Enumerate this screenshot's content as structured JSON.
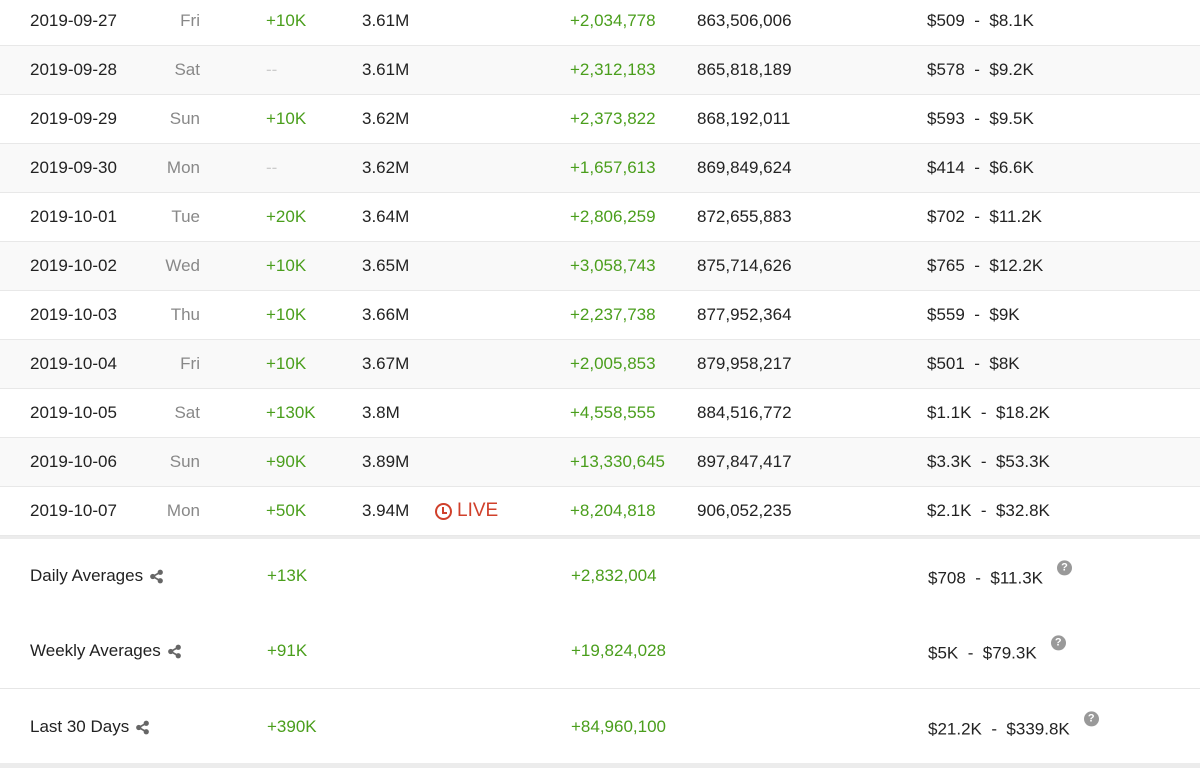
{
  "rows": [
    {
      "date": "2019-09-27",
      "day": "Fri",
      "subs": "+10K",
      "total": "3.61M",
      "views": "+2,034,778",
      "total_views": "863,506,006",
      "earnings": "$509  -  $8.1K"
    },
    {
      "date": "2019-09-28",
      "day": "Sat",
      "subs": "--",
      "total": "3.61M",
      "views": "+2,312,183",
      "total_views": "865,818,189",
      "earnings": "$578  -  $9.2K"
    },
    {
      "date": "2019-09-29",
      "day": "Sun",
      "subs": "+10K",
      "total": "3.62M",
      "views": "+2,373,822",
      "total_views": "868,192,011",
      "earnings": "$593  -  $9.5K"
    },
    {
      "date": "2019-09-30",
      "day": "Mon",
      "subs": "--",
      "total": "3.62M",
      "views": "+1,657,613",
      "total_views": "869,849,624",
      "earnings": "$414  -  $6.6K"
    },
    {
      "date": "2019-10-01",
      "day": "Tue",
      "subs": "+20K",
      "total": "3.64M",
      "views": "+2,806,259",
      "total_views": "872,655,883",
      "earnings": "$702  -  $11.2K"
    },
    {
      "date": "2019-10-02",
      "day": "Wed",
      "subs": "+10K",
      "total": "3.65M",
      "views": "+3,058,743",
      "total_views": "875,714,626",
      "earnings": "$765  -  $12.2K"
    },
    {
      "date": "2019-10-03",
      "day": "Thu",
      "subs": "+10K",
      "total": "3.66M",
      "views": "+2,237,738",
      "total_views": "877,952,364",
      "earnings": "$559  -  $9K"
    },
    {
      "date": "2019-10-04",
      "day": "Fri",
      "subs": "+10K",
      "total": "3.67M",
      "views": "+2,005,853",
      "total_views": "879,958,217",
      "earnings": "$501  -  $8K"
    },
    {
      "date": "2019-10-05",
      "day": "Sat",
      "subs": "+130K",
      "total": "3.8M",
      "views": "+4,558,555",
      "total_views": "884,516,772",
      "earnings": "$1.1K  -  $18.2K"
    },
    {
      "date": "2019-10-06",
      "day": "Sun",
      "subs": "+90K",
      "total": "3.89M",
      "views": "+13,330,645",
      "total_views": "897,847,417",
      "earnings": "$3.3K  -  $53.3K"
    },
    {
      "date": "2019-10-07",
      "day": "Mon",
      "subs": "+50K",
      "total": "3.94M",
      "live": "LIVE",
      "views": "+8,204,818",
      "total_views": "906,052,235",
      "earnings": "$2.1K  -  $32.8K"
    }
  ],
  "summary": [
    {
      "label": "Daily Averages",
      "subs": "+13K",
      "views": "+2,832,004",
      "earnings": "$708  -  $11.3K"
    },
    {
      "label": "Weekly Averages",
      "subs": "+91K",
      "views": "+19,824,028",
      "earnings": "$5K  -  $79.3K"
    },
    {
      "label": "Last 30 Days",
      "subs": "+390K",
      "views": "+84,960,100",
      "earnings": "$21.2K  -  $339.8K"
    }
  ],
  "help_glyph": "?",
  "colors": {
    "positive": "#4a9e1c",
    "live": "#d0402b",
    "muted": "#888888"
  }
}
